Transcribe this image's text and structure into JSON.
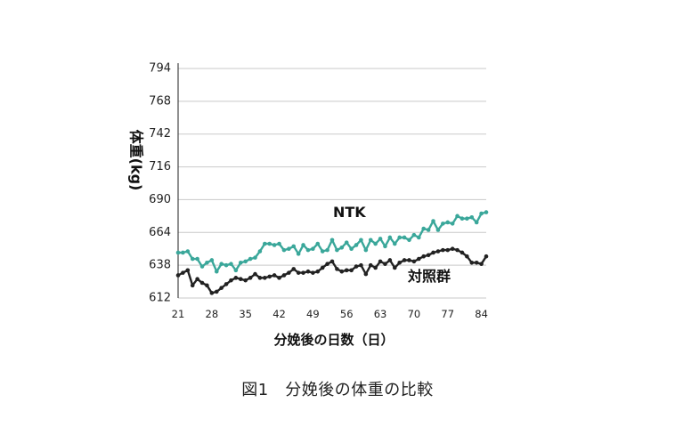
{
  "caption": "図1　分娩後の体重の比較",
  "chart_data": {
    "type": "line",
    "ylabel": "体重(kg)",
    "xlabel": "分娩後の日数（日）",
    "ylim": [
      612,
      794
    ],
    "yticks": [
      612,
      638,
      664,
      690,
      716,
      742,
      768,
      794
    ],
    "xlim": [
      21,
      85
    ],
    "xticks": [
      21,
      28,
      35,
      42,
      49,
      56,
      63,
      70,
      77,
      84
    ],
    "grid": true,
    "series": [
      {
        "name": "NTK",
        "color": "#3aa79a",
        "x": [
          21,
          22,
          23,
          24,
          25,
          26,
          27,
          28,
          29,
          30,
          31,
          32,
          33,
          34,
          35,
          36,
          37,
          38,
          39,
          40,
          41,
          42,
          43,
          44,
          45,
          46,
          47,
          48,
          49,
          50,
          51,
          52,
          53,
          54,
          55,
          56,
          57,
          58,
          59,
          60,
          61,
          62,
          63,
          64,
          65,
          66,
          67,
          68,
          69,
          70,
          71,
          72,
          73,
          74,
          75,
          76,
          77,
          78,
          79,
          80,
          81,
          82,
          83,
          84,
          85
        ],
        "values": [
          648,
          648,
          649,
          643,
          643,
          637,
          640,
          642,
          633,
          639,
          638,
          639,
          634,
          640,
          641,
          643,
          644,
          649,
          655,
          655,
          654,
          655,
          650,
          651,
          653,
          647,
          654,
          650,
          651,
          655,
          649,
          650,
          658,
          650,
          652,
          656,
          651,
          654,
          658,
          650,
          658,
          655,
          659,
          653,
          660,
          655,
          660,
          660,
          658,
          662,
          660,
          667,
          666,
          673,
          666,
          671,
          672,
          671,
          677,
          675,
          675,
          676,
          672,
          679,
          680
        ]
      },
      {
        "name": "対照群",
        "color": "#222222",
        "x": [
          21,
          22,
          23,
          24,
          25,
          26,
          27,
          28,
          29,
          30,
          31,
          32,
          33,
          34,
          35,
          36,
          37,
          38,
          39,
          40,
          41,
          42,
          43,
          44,
          45,
          46,
          47,
          48,
          49,
          50,
          51,
          52,
          53,
          54,
          55,
          56,
          57,
          58,
          59,
          60,
          61,
          62,
          63,
          64,
          65,
          66,
          67,
          68,
          69,
          70,
          71,
          72,
          73,
          74,
          75,
          76,
          77,
          78,
          79,
          80,
          81,
          82,
          83,
          84,
          85
        ],
        "values": [
          630,
          632,
          634,
          622,
          627,
          624,
          622,
          616,
          617,
          620,
          623,
          626,
          628,
          627,
          626,
          628,
          631,
          628,
          628,
          629,
          630,
          628,
          630,
          632,
          635,
          632,
          632,
          633,
          632,
          633,
          636,
          639,
          641,
          635,
          633,
          634,
          634,
          637,
          638,
          631,
          638,
          636,
          641,
          639,
          642,
          636,
          640,
          642,
          642,
          641,
          643,
          645,
          646,
          648,
          649,
          650,
          650,
          651,
          650,
          648,
          645,
          640,
          640,
          639,
          645
        ]
      }
    ],
    "labels": {
      "ntk": "NTK",
      "control": "対照群"
    }
  }
}
